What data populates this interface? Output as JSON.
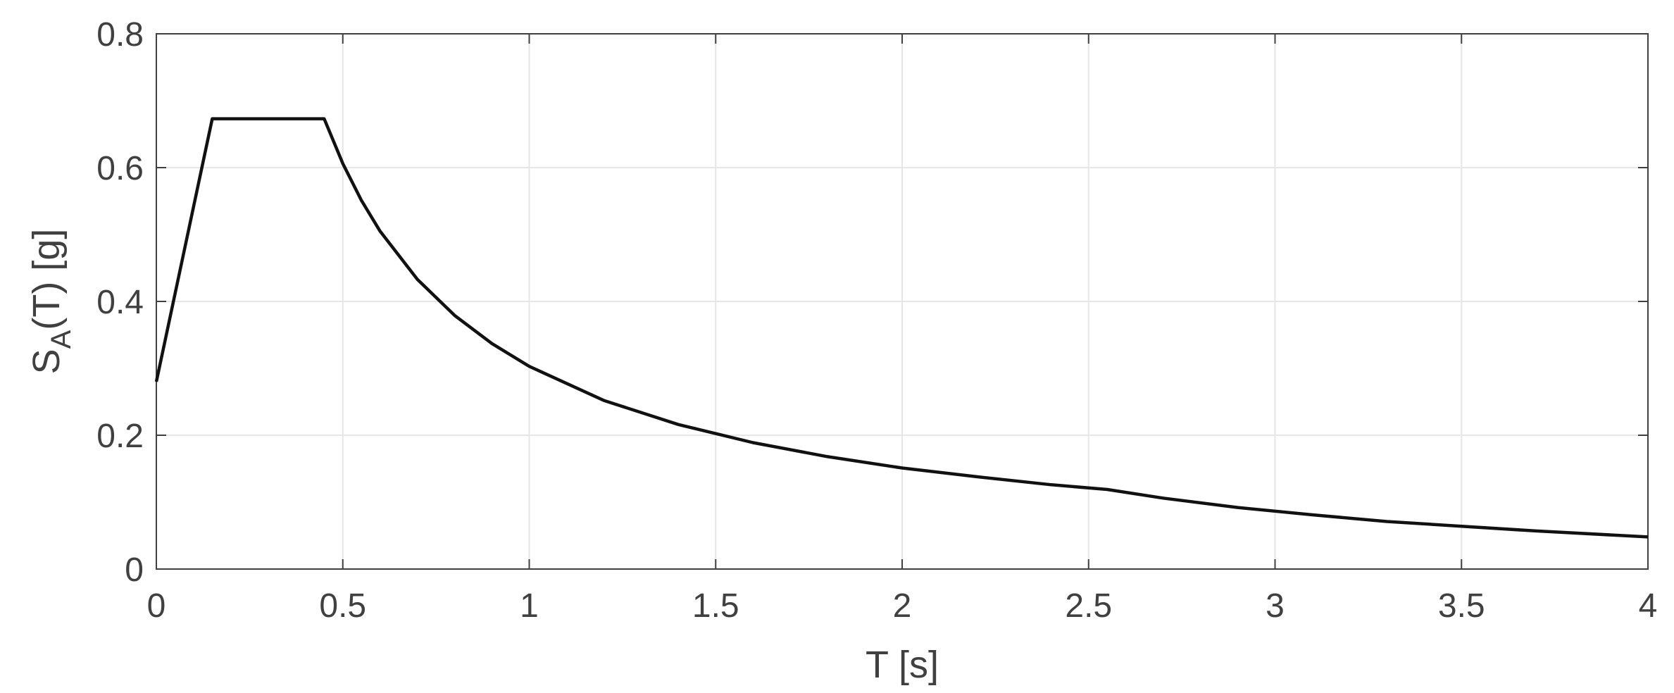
{
  "chart_data": {
    "type": "line",
    "title": "",
    "xlabel": "T [s]",
    "ylabel_main": "S",
    "ylabel_sub": "A",
    "ylabel_rest": "(T) [g]",
    "xlim": [
      0,
      4
    ],
    "ylim": [
      0,
      0.8
    ],
    "xticks": [
      0,
      0.5,
      1,
      1.5,
      2,
      2.5,
      3,
      3.5,
      4
    ],
    "xtick_labels": [
      "0",
      "0.5",
      "1",
      "1.5",
      "2",
      "2.5",
      "3",
      "3.5",
      "4"
    ],
    "yticks": [
      0,
      0.2,
      0.4,
      0.6,
      0.8
    ],
    "ytick_labels": [
      "0",
      "0.2",
      "0.4",
      "0.6",
      "0.8"
    ],
    "grid": true,
    "colors": {
      "line": "#111111",
      "grid": "#e6e6e6",
      "axis": "#404040"
    },
    "series": [
      {
        "x": [
          0,
          0.15,
          0.45,
          0.5,
          0.55,
          0.6,
          0.7,
          0.8,
          0.9,
          1.0,
          1.2,
          1.4,
          1.6,
          1.8,
          2.0,
          2.2,
          2.4,
          2.55,
          2.7,
          2.9,
          3.1,
          3.3,
          3.5,
          3.7,
          4.0
        ],
        "y": [
          0.28,
          0.673,
          0.673,
          0.606,
          0.551,
          0.505,
          0.433,
          0.379,
          0.337,
          0.303,
          0.252,
          0.216,
          0.189,
          0.168,
          0.151,
          0.138,
          0.126,
          0.119,
          0.106,
          0.092,
          0.081,
          0.071,
          0.064,
          0.057,
          0.048
        ]
      }
    ]
  }
}
